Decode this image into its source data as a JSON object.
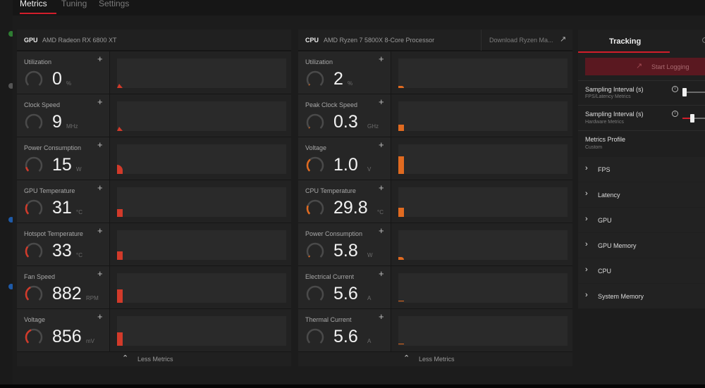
{
  "tabs": [
    "Metrics",
    "Tuning",
    "Settings"
  ],
  "gpu": {
    "type": "GPU",
    "name": "AMD Radeon RX 6800 XT",
    "metrics": [
      {
        "label": "Utilization",
        "value": "0",
        "unit": "%",
        "gauge": 0.0,
        "gauge_color": "#d23a2a",
        "chart_kind": "tri",
        "chart_level": 0.15,
        "chart_color": "#d23a2a"
      },
      {
        "label": "Clock Speed",
        "value": "9",
        "unit": "MHz",
        "gauge": 0.0,
        "gauge_color": "#d23a2a",
        "chart_kind": "tri",
        "chart_level": 0.15,
        "chart_color": "#d23a2a"
      },
      {
        "label": "Power Consumption",
        "value": "15",
        "unit": "W",
        "gauge": 0.12,
        "gauge_color": "#d23a2a",
        "chart_kind": "round",
        "chart_level": 0.3,
        "chart_color": "#d23a2a"
      },
      {
        "label": "GPU Temperature",
        "value": "31",
        "unit": "°C",
        "gauge": 0.28,
        "gauge_color": "#d23a2a",
        "chart_kind": "bar",
        "chart_level": 0.26,
        "chart_color": "#d23a2a"
      },
      {
        "label": "Hotspot Temperature",
        "value": "33",
        "unit": "°C",
        "gauge": 0.3,
        "gauge_color": "#d23a2a",
        "chart_kind": "bar",
        "chart_level": 0.28,
        "chart_color": "#d23a2a"
      },
      {
        "label": "Fan Speed",
        "value": "882",
        "unit": "RPM",
        "gauge": 0.4,
        "gauge_color": "#d23a2a",
        "chart_kind": "bar",
        "chart_level": 0.45,
        "chart_color": "#d23a2a"
      },
      {
        "label": "Voltage",
        "value": "856",
        "unit": "mV",
        "gauge": 0.42,
        "gauge_color": "#d23a2a",
        "chart_kind": "bar",
        "chart_level": 0.45,
        "chart_color": "#d23a2a"
      }
    ]
  },
  "cpu": {
    "type": "CPU",
    "name": "AMD Ryzen 7 5800X 8-Core Processor",
    "download_label": "Download Ryzen Ma...",
    "metrics": [
      {
        "label": "Utilization",
        "value": "2",
        "unit": "%",
        "gauge": 0.02,
        "gauge_color": "#e06a20",
        "chart_kind": "sliver",
        "chart_level": 0.06,
        "chart_color": "#e06a20"
      },
      {
        "label": "Peak Clock Speed",
        "value": "0.3",
        "unit": "GHz",
        "gauge": 0.02,
        "gauge_color": "#e06a20",
        "chart_kind": "bar",
        "chart_level": 0.22,
        "chart_color": "#e06a20"
      },
      {
        "label": "Voltage",
        "value": "1.0",
        "unit": "V",
        "gauge": 0.35,
        "gauge_color": "#e06a20",
        "chart_kind": "bar",
        "chart_level": 0.6,
        "chart_color": "#e06a20"
      },
      {
        "label": "CPU Temperature",
        "value": "29.8",
        "unit": "°C",
        "gauge": 0.24,
        "gauge_color": "#e06a20",
        "chart_kind": "bar",
        "chart_level": 0.3,
        "chart_color": "#e06a20"
      },
      {
        "label": "Power Consumption",
        "value": "5.8",
        "unit": "W",
        "gauge": 0.03,
        "gauge_color": "#e06a20",
        "chart_kind": "sliver",
        "chart_level": 0.1,
        "chart_color": "#e06a20"
      },
      {
        "label": "Electrical Current",
        "value": "5.6",
        "unit": "A",
        "gauge": 0.0,
        "gauge_color": "#e06a20",
        "chart_kind": "line",
        "chart_level": 0.03,
        "chart_color": "#e06a20"
      },
      {
        "label": "Thermal Current",
        "value": "5.6",
        "unit": "A",
        "gauge": 0.0,
        "gauge_color": "#e06a20",
        "chart_kind": "line",
        "chart_level": 0.03,
        "chart_color": "#e06a20"
      }
    ]
  },
  "less_metrics": "Less Metrics",
  "tracking": {
    "title": "Tracking",
    "start_logging": "Start Logging",
    "sampling_fps": {
      "label": "Sampling Interval (s)",
      "sub": "FPS/Latency Metrics",
      "level": 0.0
    },
    "sampling_hw": {
      "label": "Sampling Interval (s)",
      "sub": "Hardware Metrics",
      "level": 0.35
    },
    "profile": {
      "label": "Metrics Profile",
      "value": "Custom"
    },
    "sections": [
      "FPS",
      "Latency",
      "GPU",
      "GPU Memory",
      "CPU",
      "System Memory"
    ]
  },
  "icons": {
    "add": "plus-icon",
    "expand": "chevron-right-icon",
    "collapse": "chevron-up-icon",
    "external": "arrow-up-right-icon",
    "info": "info-icon",
    "log": "trend-icon"
  }
}
